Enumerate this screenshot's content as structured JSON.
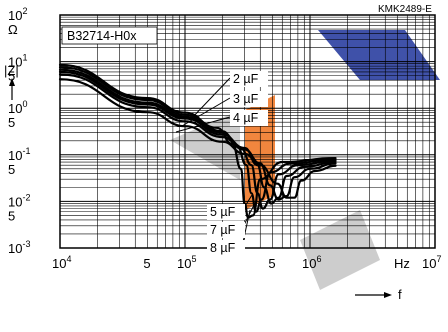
{
  "header": {
    "code": "KMK2489-E",
    "part_number": "B32714-H0x"
  },
  "watermark_colors": {
    "blue": "#2b3fa0",
    "orange": "#f07a2a",
    "grey": "#c8c8c8"
  },
  "chart_data": {
    "type": "line",
    "title": "B32714-H0x",
    "xlabel": "f",
    "x_unit": "Hz",
    "ylabel": "|Z|",
    "y_unit": "Ω",
    "x_scale": "log",
    "y_scale": "log",
    "xlim": [
      10000,
      10000000
    ],
    "ylim": [
      0.001,
      100
    ],
    "grid": true,
    "x_ticks": [
      {
        "base": "10",
        "exp": "4"
      },
      {
        "base": "5",
        "exp": ""
      },
      {
        "base": "10",
        "exp": "5"
      },
      {
        "base": "5",
        "exp": ""
      },
      {
        "base": "10",
        "exp": "6"
      },
      {
        "base": "Hz",
        "exp": ""
      },
      {
        "base": "10",
        "exp": "7"
      }
    ],
    "y_ticks": [
      {
        "base": "10",
        "exp": "2"
      },
      {
        "base": "Ω",
        "exp": ""
      },
      {
        "base": "10",
        "exp": "1"
      },
      {
        "base": "5",
        "exp": ""
      },
      {
        "base": "10",
        "exp": "0"
      },
      {
        "base": "5",
        "exp": ""
      },
      {
        "base": "10",
        "exp": "-1"
      },
      {
        "base": "5",
        "exp": ""
      },
      {
        "base": "10",
        "exp": "-2"
      },
      {
        "base": "5",
        "exp": ""
      },
      {
        "base": "10",
        "exp": "-3"
      }
    ],
    "series": [
      {
        "name": "2 µF",
        "points": [
          [
            10000,
            4.2
          ],
          [
            50000,
            0.82
          ],
          [
            100000,
            0.41
          ],
          [
            200000,
            0.19
          ],
          [
            300000,
            0.105
          ],
          [
            400000,
            0.06
          ],
          [
            550000,
            0.024
          ],
          [
            650000,
            0.012
          ],
          [
            750000,
            0.012
          ],
          [
            850000,
            0.028
          ],
          [
            1100000,
            0.045
          ],
          [
            1600000,
            0.058
          ]
        ]
      },
      {
        "name": "3 µF",
        "points": [
          [
            10000,
            5.3
          ],
          [
            50000,
            1.05
          ],
          [
            100000,
            0.52
          ],
          [
            200000,
            0.24
          ],
          [
            300000,
            0.13
          ],
          [
            400000,
            0.065
          ],
          [
            480000,
            0.022
          ],
          [
            560000,
            0.011
          ],
          [
            650000,
            0.013
          ],
          [
            750000,
            0.033
          ],
          [
            1000000,
            0.05
          ],
          [
            1600000,
            0.065
          ]
        ]
      },
      {
        "name": "4 µF",
        "points": [
          [
            10000,
            6.0
          ],
          [
            50000,
            1.2
          ],
          [
            100000,
            0.6
          ],
          [
            200000,
            0.27
          ],
          [
            300000,
            0.14
          ],
          [
            380000,
            0.06
          ],
          [
            430000,
            0.02
          ],
          [
            490000,
            0.009
          ],
          [
            560000,
            0.012
          ],
          [
            650000,
            0.035
          ],
          [
            900000,
            0.055
          ],
          [
            1600000,
            0.07
          ]
        ]
      },
      {
        "name": "5 µF",
        "points": [
          [
            10000,
            6.7
          ],
          [
            50000,
            1.32
          ],
          [
            100000,
            0.65
          ],
          [
            200000,
            0.3
          ],
          [
            280000,
            0.14
          ],
          [
            340000,
            0.06
          ],
          [
            380000,
            0.015
          ],
          [
            420000,
            0.007
          ],
          [
            480000,
            0.011
          ],
          [
            560000,
            0.038
          ],
          [
            800000,
            0.06
          ],
          [
            1600000,
            0.075
          ]
        ]
      },
      {
        "name": "7 µF",
        "points": [
          [
            10000,
            7.6
          ],
          [
            50000,
            1.5
          ],
          [
            100000,
            0.72
          ],
          [
            200000,
            0.32
          ],
          [
            260000,
            0.16
          ],
          [
            310000,
            0.06
          ],
          [
            340000,
            0.015
          ],
          [
            370000,
            0.006
          ],
          [
            410000,
            0.011
          ],
          [
            480000,
            0.042
          ],
          [
            700000,
            0.065
          ],
          [
            1600000,
            0.08
          ]
        ]
      },
      {
        "name": "8 µF",
        "points": [
          [
            10000,
            8.5
          ],
          [
            50000,
            1.65
          ],
          [
            100000,
            0.8
          ],
          [
            180000,
            0.38
          ],
          [
            240000,
            0.17
          ],
          [
            280000,
            0.05
          ],
          [
            300000,
            0.009
          ],
          [
            320000,
            0.0045
          ],
          [
            350000,
            0.005
          ],
          [
            400000,
            0.03
          ],
          [
            600000,
            0.07
          ],
          [
            1600000,
            0.085
          ]
        ]
      }
    ]
  }
}
